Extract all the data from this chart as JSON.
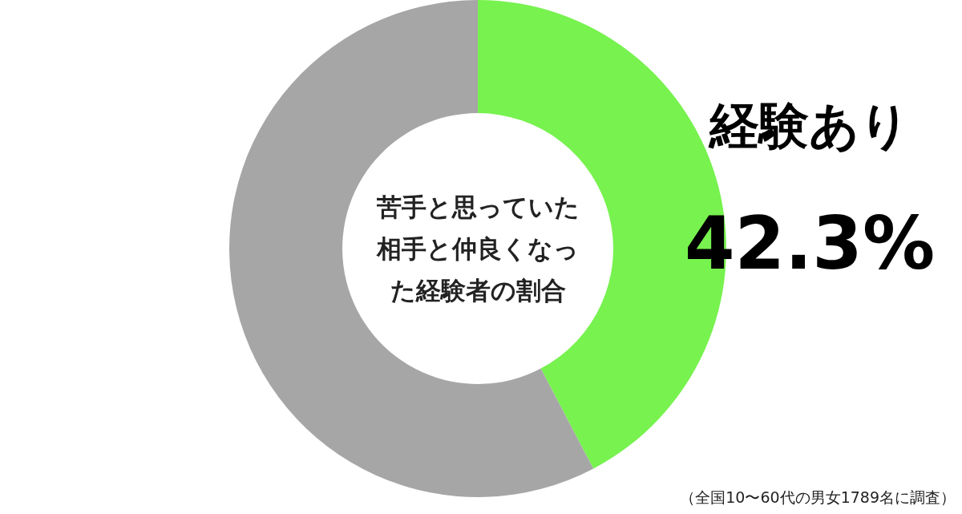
{
  "chart_data": {
    "type": "donut",
    "title": "苦手と思っていた相手と仲良くなった経験者の割合",
    "categories": [
      "経験あり",
      null
    ],
    "values": [
      42.3,
      57.7
    ],
    "colors": [
      "#77f24f",
      "#a6a6a6"
    ],
    "value_labels": [
      "42.3%",
      null
    ],
    "annotations": [
      "（全国10〜60代の男女1789名に調査）"
    ]
  }
}
